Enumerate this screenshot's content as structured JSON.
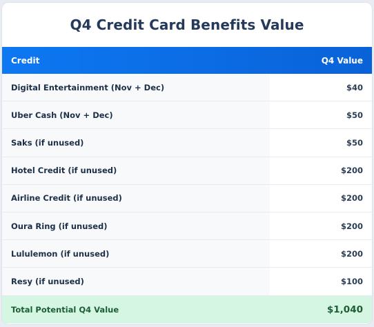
{
  "title": "Q4 Credit Card Benefits Value",
  "table": {
    "headers": {
      "credit": "Credit",
      "value": "Q4 Value"
    },
    "rows": [
      {
        "label": "Digital Entertainment (Nov + Dec)",
        "value": "$40"
      },
      {
        "label": "Uber Cash (Nov + Dec)",
        "value": "$50"
      },
      {
        "label": "Saks (if unused)",
        "value": "$50"
      },
      {
        "label": "Hotel Credit (if unused)",
        "value": "$200"
      },
      {
        "label": "Airline Credit (if unused)",
        "value": "$200"
      },
      {
        "label": "Oura Ring (if unused)",
        "value": "$200"
      },
      {
        "label": "Lululemon (if unused)",
        "value": "$200"
      },
      {
        "label": "Resy (if unused)",
        "value": "$100"
      }
    ],
    "total": {
      "label": "Total Potential Q4 Value",
      "value": "$1,040"
    }
  },
  "colors": {
    "header_bg": "#0d78f2",
    "title_text": "#253a5a",
    "total_bg": "#d5f6e2",
    "total_text": "#1b5e37"
  }
}
